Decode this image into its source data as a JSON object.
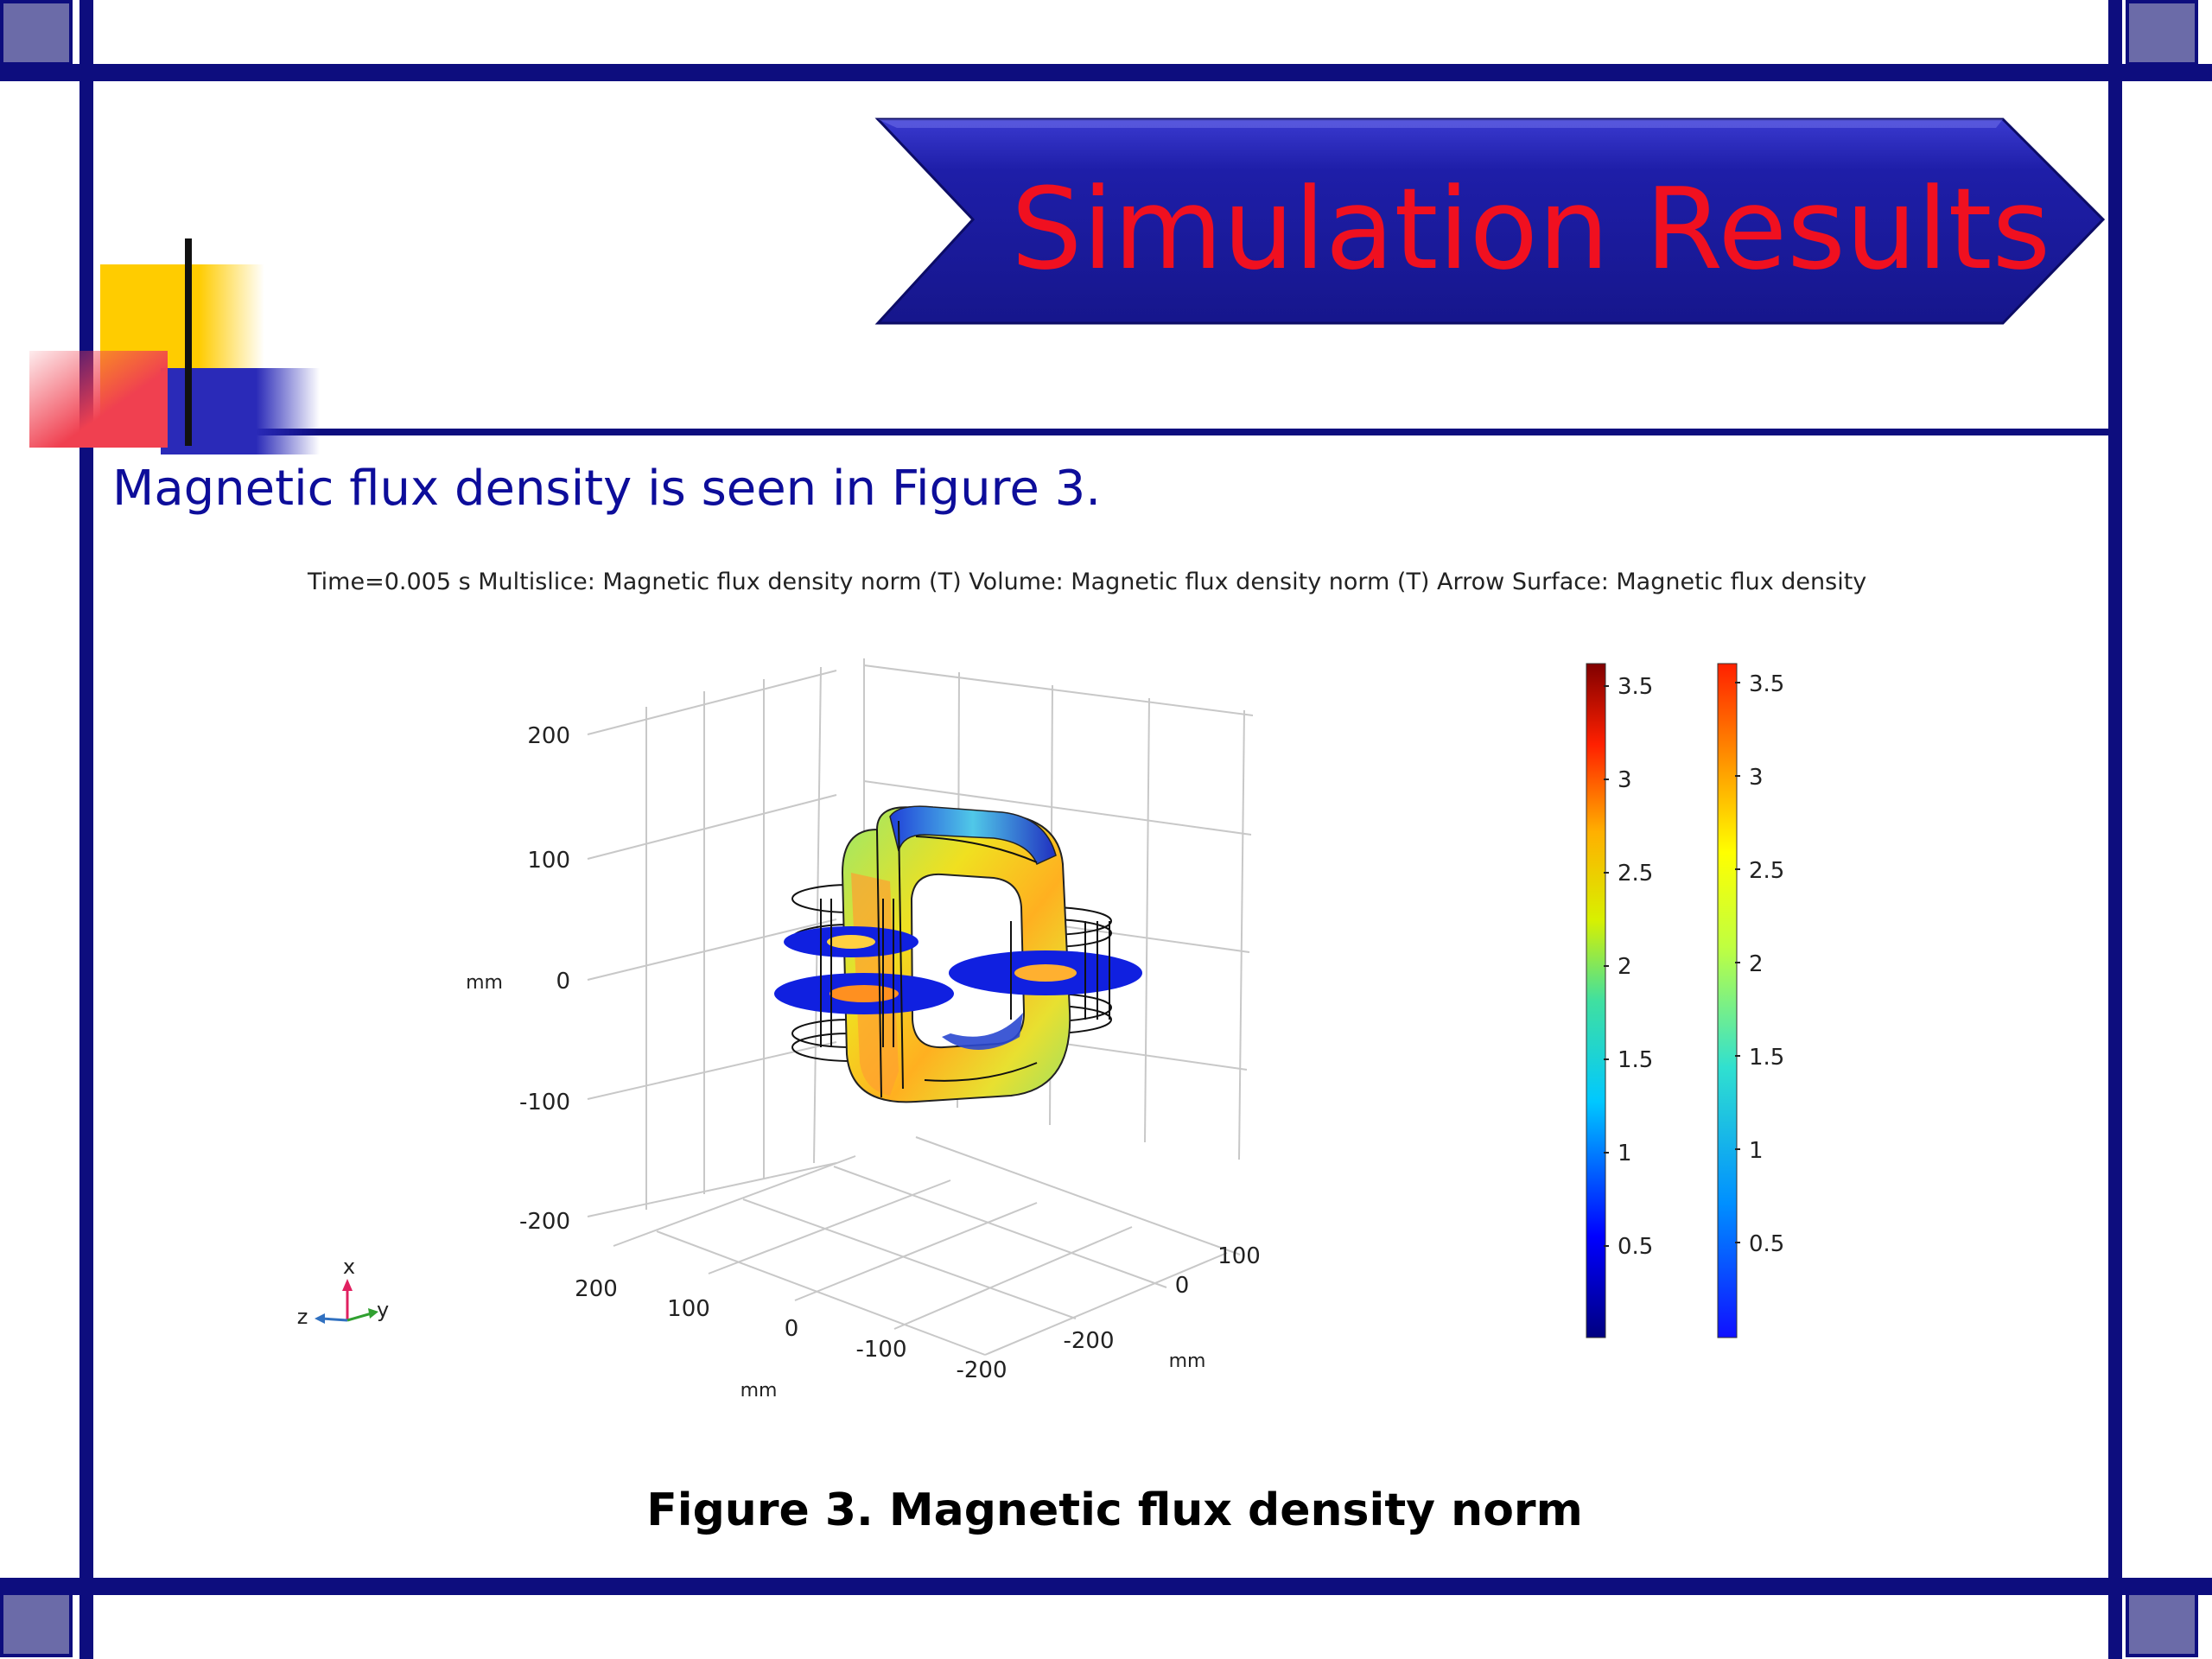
{
  "slide": {
    "title": "Simulation Results",
    "body_text": "Magnetic flux density is seen in Figure 3.",
    "caption": "Figure 3. Magnetic flux density norm",
    "colors": {
      "frame": "#0d0d7e",
      "banner": "#1a1aa0",
      "title": "#f01020",
      "body_text": "#0d0d9a"
    }
  },
  "figure": {
    "header": "Time=0.005 s   Multislice: Magnetic flux density norm (T)  Volume: Magnetic flux density norm (T)  Arrow Surface: Magnetic flux density",
    "vertical_axis": {
      "unit": "mm",
      "ticks": [
        "200",
        "100",
        "0",
        "-100",
        "-200"
      ]
    },
    "left_floor_axis": {
      "unit": "mm",
      "ticks": [
        "200",
        "100",
        "0",
        "-100",
        "-200"
      ]
    },
    "right_floor_axis": {
      "unit": "mm",
      "ticks": [
        "100",
        "0",
        "-200"
      ]
    },
    "triad": {
      "x": "x",
      "y": "y",
      "z": "z"
    },
    "colorbar_1": {
      "ticks": [
        "3.5",
        "3",
        "2.5",
        "2",
        "1.5",
        "1",
        "0.5"
      ],
      "colormap": "rainbow"
    },
    "colorbar_2": {
      "ticks": [
        "3.5",
        "3",
        "2.5",
        "2",
        "1.5",
        "1",
        "0.5"
      ],
      "colormap": "jet"
    }
  }
}
